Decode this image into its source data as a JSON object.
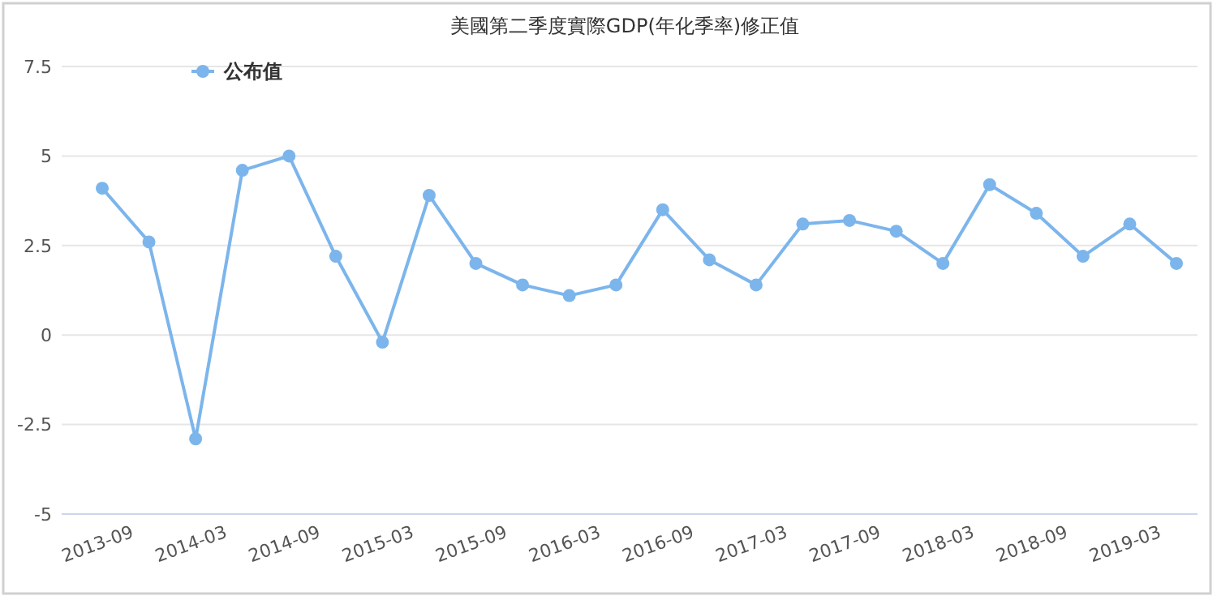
{
  "chart_data": {
    "type": "line",
    "title": "美國第二季度實際GDP(年化季率)修正值",
    "categories": [
      "2013-09",
      null,
      "2014-03",
      null,
      "2014-09",
      null,
      "2015-03",
      null,
      "2015-09",
      null,
      "2016-03",
      null,
      "2016-09",
      null,
      "2017-03",
      null,
      "2017-09",
      null,
      "2018-03",
      null,
      "2018-09",
      null,
      "2019-03",
      null
    ],
    "series": [
      {
        "name": "公布值",
        "color": "#7cb5ec",
        "values": [
          4.1,
          2.6,
          -2.9,
          4.6,
          5.0,
          2.2,
          -0.2,
          3.9,
          2.0,
          1.4,
          1.1,
          1.4,
          3.5,
          2.1,
          1.4,
          3.1,
          3.2,
          2.9,
          2.0,
          4.2,
          3.4,
          2.2,
          3.1,
          2.0
        ]
      }
    ],
    "ylim": [
      -5,
      7.5
    ],
    "yticks": [
      -5,
      -2.5,
      0,
      2.5,
      5,
      7.5
    ],
    "grid": "y",
    "legend": "top left",
    "marker": "circle",
    "line_style": "solid"
  }
}
